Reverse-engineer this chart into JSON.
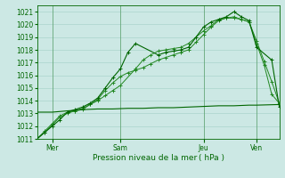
{
  "title": "",
  "xlabel": "Pression niveau de la mer ( hPa )",
  "bg_color": "#cce8e4",
  "grid_color": "#aad4cc",
  "line_color_dark": "#006600",
  "line_color_mid": "#228822",
  "ylim": [
    1011,
    1021.5
  ],
  "yticks": [
    1011,
    1012,
    1013,
    1014,
    1015,
    1016,
    1017,
    1018,
    1019,
    1020,
    1021
  ],
  "xlim": [
    0,
    8.0
  ],
  "xtick_labels": [
    "Mer",
    "Sam",
    "Jeu",
    "Ven"
  ],
  "xtick_pos": [
    0.5,
    2.75,
    5.5,
    7.25
  ],
  "vline_pos": [
    0.5,
    2.75,
    5.5,
    7.25
  ],
  "line1_x": [
    0,
    0.25,
    0.5,
    0.75,
    1.0,
    1.25,
    1.5,
    1.75,
    2.0,
    2.25,
    2.5,
    2.75,
    3.0,
    3.25,
    3.5,
    3.75,
    4.0,
    4.25,
    4.5,
    4.75,
    5.0,
    5.25,
    5.5,
    5.75,
    6.0,
    6.25,
    6.5,
    6.75,
    7.0,
    7.25,
    7.5,
    7.75,
    8.0
  ],
  "line1_y": [
    1011.0,
    1011.6,
    1012.2,
    1012.8,
    1013.1,
    1013.2,
    1013.3,
    1013.7,
    1014.1,
    1014.8,
    1015.4,
    1015.9,
    1016.2,
    1016.4,
    1016.6,
    1016.9,
    1017.2,
    1017.4,
    1017.6,
    1017.8,
    1018.0,
    1018.6,
    1019.2,
    1019.8,
    1020.3,
    1020.5,
    1020.6,
    1020.4,
    1020.2,
    1018.7,
    1017.1,
    1015.5,
    1013.8
  ],
  "line2_x": [
    0,
    0.25,
    0.5,
    0.75,
    1.0,
    1.25,
    1.5,
    1.75,
    2.0,
    2.25,
    2.5,
    2.75,
    3.25,
    3.5,
    3.75,
    4.0,
    4.25,
    4.5,
    4.75,
    5.0,
    5.25,
    5.5,
    5.75,
    6.0,
    6.25,
    6.5,
    6.75,
    7.0,
    7.25,
    7.5,
    7.75,
    8.0
  ],
  "line2_y": [
    1011.0,
    1011.5,
    1012.1,
    1012.7,
    1013.0,
    1013.2,
    1013.4,
    1013.7,
    1014.0,
    1014.4,
    1014.8,
    1015.2,
    1016.5,
    1017.2,
    1017.6,
    1017.9,
    1018.0,
    1018.1,
    1018.2,
    1018.5,
    1019.0,
    1019.5,
    1019.9,
    1020.4,
    1020.5,
    1020.5,
    1020.4,
    1020.2,
    1018.5,
    1016.8,
    1014.5,
    1013.8
  ],
  "line3_x": [
    0,
    0.25,
    0.5,
    0.75,
    1.0,
    1.25,
    1.5,
    1.75,
    2.0,
    2.25,
    2.5,
    2.75,
    3.0,
    3.25,
    4.0,
    4.25,
    4.5,
    4.75,
    5.0,
    5.25,
    5.5,
    5.75,
    6.0,
    6.25,
    6.5,
    6.75,
    7.0,
    7.25,
    7.75,
    8.0
  ],
  "line3_y": [
    1011.0,
    1011.5,
    1012.0,
    1012.5,
    1013.1,
    1013.3,
    1013.5,
    1013.8,
    1014.2,
    1015.0,
    1015.8,
    1016.5,
    1017.8,
    1018.5,
    1017.6,
    1017.8,
    1017.9,
    1018.0,
    1018.2,
    1019.0,
    1019.8,
    1020.2,
    1020.4,
    1020.6,
    1021.0,
    1020.6,
    1020.3,
    1018.2,
    1017.2,
    1013.5
  ],
  "line4_x": [
    0,
    0.5,
    0.75,
    1.0,
    1.25,
    1.5,
    2.0,
    2.5,
    3.0,
    3.5,
    4.0,
    4.5,
    5.0,
    5.5,
    6.0,
    6.5,
    7.0,
    7.25,
    8.0
  ],
  "line4_y": [
    1013.1,
    1013.1,
    1013.15,
    1013.2,
    1013.25,
    1013.3,
    1013.35,
    1013.35,
    1013.4,
    1013.4,
    1013.45,
    1013.45,
    1013.5,
    1013.55,
    1013.6,
    1013.6,
    1013.65,
    1013.65,
    1013.7
  ]
}
